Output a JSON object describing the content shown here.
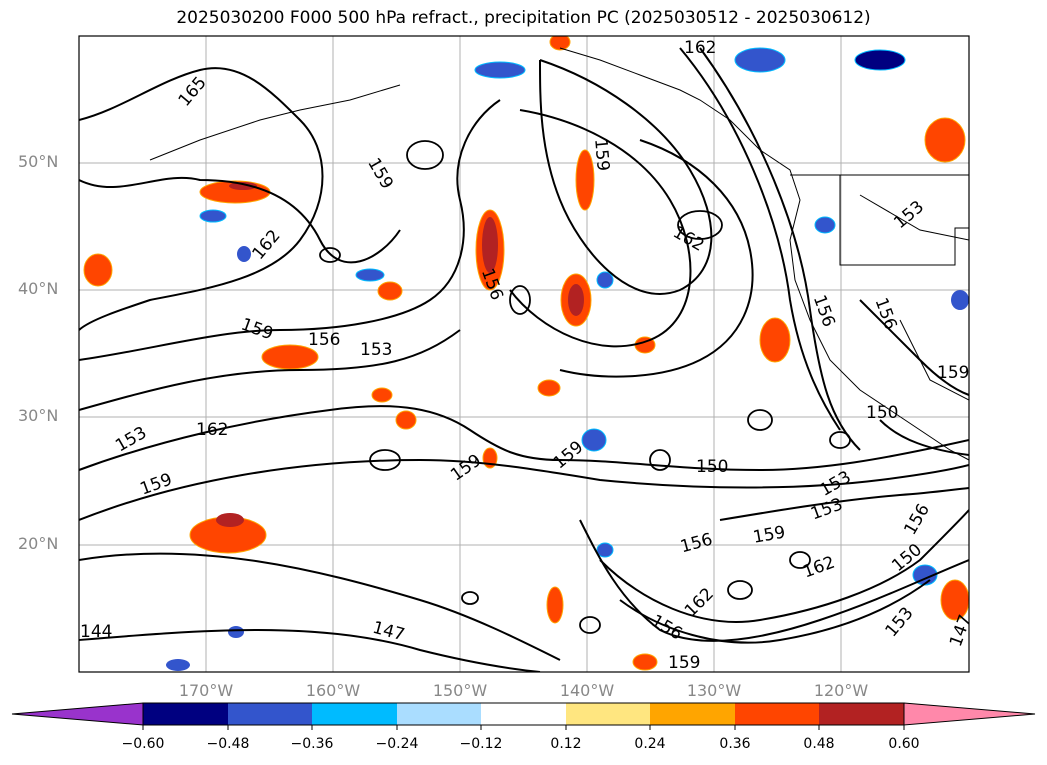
{
  "title": "2025030200 F000 500 hPa refract., precipitation PC (2025030512 - 2025030612)",
  "map": {
    "lat_ticks": [
      "50°N",
      "40°N",
      "30°N",
      "20°N"
    ],
    "lon_ticks": [
      "170°W",
      "160°W",
      "150°W",
      "140°W",
      "130°W",
      "120°W"
    ],
    "grid": true
  },
  "contours": {
    "line_color": "#000000",
    "labels": [
      "165",
      "159",
      "162",
      "159",
      "156",
      "153",
      "153",
      "162",
      "159",
      "159",
      "159",
      "156",
      "162",
      "159",
      "162",
      "153",
      "156",
      "156",
      "159",
      "150",
      "150",
      "153",
      "153",
      "159",
      "156",
      "162",
      "150",
      "156",
      "153",
      "147",
      "147",
      "144",
      "162",
      "156",
      "159"
    ]
  },
  "colorbar": {
    "tick_labels": [
      "−0.60",
      "−0.48",
      "−0.36",
      "−0.24",
      "−0.12",
      "0.12",
      "0.24",
      "0.36",
      "0.48",
      "0.60"
    ],
    "colors": [
      "#9933cc",
      "#000080",
      "#3355cc",
      "#00bbff",
      "#aaddff",
      "#ffffff",
      "#ffe680",
      "#ffa500",
      "#ff4500",
      "#b22222",
      "#ff88aa"
    ]
  }
}
